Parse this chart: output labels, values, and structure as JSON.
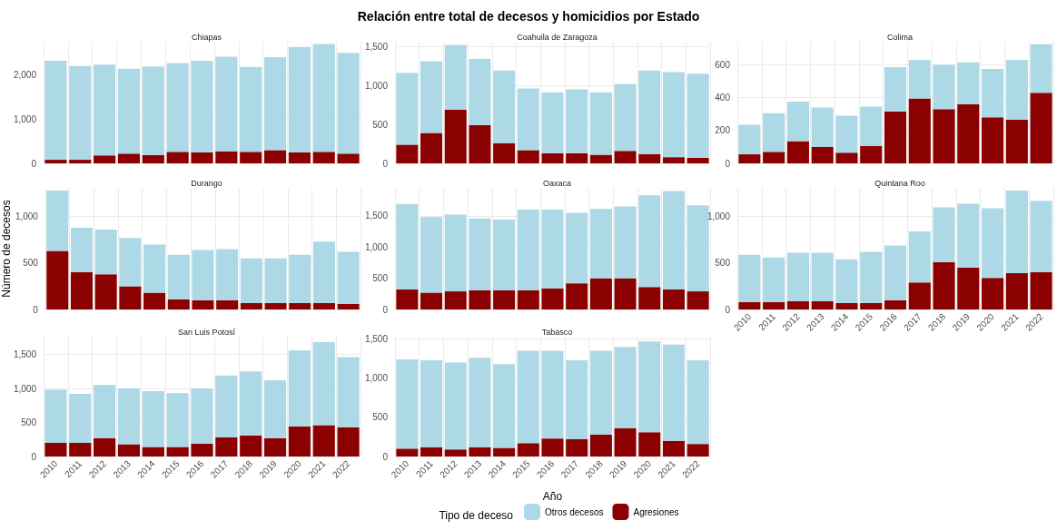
{
  "chart_data": [
    {
      "type": "bar",
      "subtitle": "Chiapas",
      "categories": [
        "2010",
        "2011",
        "2012",
        "2013",
        "2014",
        "2015",
        "2016",
        "2017",
        "2018",
        "2019",
        "2020",
        "2021",
        "2022"
      ],
      "stacked": true,
      "ylim": [
        0,
        2750
      ],
      "yticks": [
        0,
        {
          "value": 1000,
          "label": "1,000"
        },
        {
          "value": 2000,
          "label": "2,000"
        }
      ],
      "grid": true,
      "tick_labels": "y",
      "series": [
        {
          "color": "#8b0000",
          "values": [
            80,
            80,
            180,
            220,
            190,
            260,
            250,
            270,
            260,
            300,
            250,
            260,
            220
          ]
        },
        {
          "color": "#add8e6",
          "values": [
            2240,
            2120,
            2050,
            1920,
            2000,
            2010,
            2070,
            2140,
            1920,
            2100,
            2380,
            2440,
            2280
          ]
        }
      ]
    },
    {
      "type": "bar",
      "title": "Relación entre total de decesos y homicidios por Estado",
      "subtitle": "Coahuila de Zaragoza",
      "categories": [
        "2010",
        "2011",
        "2012",
        "2013",
        "2014",
        "2015",
        "2016",
        "2017",
        "2018",
        "2019",
        "2020",
        "2021",
        "2022"
      ],
      "stacked": true,
      "ylim": [
        0,
        1560
      ],
      "yticks": [
        0,
        500,
        {
          "value": 1000,
          "label": "1,000"
        },
        {
          "value": 1500,
          "label": "1,500"
        }
      ],
      "grid": true,
      "tick_labels": "y",
      "series": [
        {
          "color": "#8b0000",
          "values": [
            240,
            390,
            690,
            490,
            260,
            170,
            130,
            130,
            110,
            160,
            120,
            80,
            70
          ]
        },
        {
          "color": "#add8e6",
          "values": [
            920,
            920,
            830,
            850,
            930,
            790,
            780,
            820,
            800,
            860,
            1070,
            1090,
            1080
          ]
        }
      ]
    },
    {
      "type": "bar",
      "subtitle": "Colima",
      "categories": [
        "2010",
        "2011",
        "2012",
        "2013",
        "2014",
        "2015",
        "2016",
        "2017",
        "2018",
        "2019",
        "2020",
        "2021",
        "2022"
      ],
      "stacked": true,
      "ylim": [
        0,
        740
      ],
      "yticks": [
        0,
        200,
        400,
        600
      ],
      "grid": true,
      "tick_labels": "y",
      "series": [
        {
          "color": "#8b0000",
          "values": [
            55,
            70,
            135,
            100,
            65,
            105,
            315,
            395,
            330,
            360,
            280,
            265,
            430
          ]
        },
        {
          "color": "#add8e6",
          "values": [
            180,
            235,
            240,
            240,
            225,
            240,
            270,
            235,
            270,
            255,
            295,
            365,
            295
          ]
        }
      ]
    },
    {
      "type": "bar",
      "subtitle": "Durango",
      "ylabel": "Número de decesos",
      "categories": [
        "2010",
        "2011",
        "2012",
        "2013",
        "2014",
        "2015",
        "2016",
        "2017",
        "2018",
        "2019",
        "2020",
        "2021",
        "2022"
      ],
      "stacked": true,
      "ylim": [
        0,
        1310
      ],
      "yticks": [
        0,
        500,
        {
          "value": 1000,
          "label": "1,000"
        }
      ],
      "grid": true,
      "tick_labels": "y",
      "series": [
        {
          "color": "#8b0000",
          "values": [
            630,
            400,
            380,
            250,
            180,
            110,
            100,
            100,
            70,
            70,
            70,
            70,
            60
          ]
        },
        {
          "color": "#add8e6",
          "values": [
            650,
            480,
            480,
            520,
            520,
            480,
            540,
            550,
            480,
            480,
            520,
            660,
            560
          ]
        }
      ]
    },
    {
      "type": "bar",
      "subtitle": "Oaxaca",
      "categories": [
        "2010",
        "2011",
        "2012",
        "2013",
        "2014",
        "2015",
        "2016",
        "2017",
        "2018",
        "2019",
        "2020",
        "2021",
        "2022"
      ],
      "stacked": true,
      "ylim": [
        0,
        1950
      ],
      "yticks": [
        0,
        500,
        {
          "value": 1000,
          "label": "1,000"
        },
        {
          "value": 1500,
          "label": "1,500"
        }
      ],
      "grid": true,
      "tick_labels": "y",
      "series": [
        {
          "color": "#8b0000",
          "values": [
            320,
            270,
            290,
            310,
            310,
            310,
            340,
            420,
            500,
            500,
            360,
            320,
            290
          ]
        },
        {
          "color": "#add8e6",
          "values": [
            1370,
            1210,
            1230,
            1150,
            1130,
            1290,
            1260,
            1130,
            1110,
            1150,
            1470,
            1580,
            1380
          ]
        }
      ]
    },
    {
      "type": "bar",
      "subtitle": "Quintana Roo",
      "categories": [
        "2010",
        "2011",
        "2012",
        "2013",
        "2014",
        "2015",
        "2016",
        "2017",
        "2018",
        "2019",
        "2020",
        "2021",
        "2022"
      ],
      "stacked": true,
      "ylim": [
        0,
        1310
      ],
      "yticks": [
        0,
        500,
        {
          "value": 1000,
          "label": "1,000"
        }
      ],
      "grid": true,
      "series": [
        {
          "color": "#8b0000",
          "values": [
            80,
            80,
            90,
            90,
            70,
            70,
            100,
            290,
            510,
            450,
            340,
            390,
            400
          ]
        },
        {
          "color": "#add8e6",
          "values": [
            510,
            480,
            520,
            520,
            470,
            550,
            590,
            550,
            590,
            690,
            750,
            890,
            770
          ]
        }
      ]
    },
    {
      "type": "bar",
      "subtitle": "San Luis Potosí",
      "categories": [
        "2010",
        "2011",
        "2012",
        "2013",
        "2014",
        "2015",
        "2016",
        "2017",
        "2018",
        "2019",
        "2020",
        "2021",
        "2022"
      ],
      "stacked": true,
      "ylim": [
        0,
        1760
      ],
      "yticks": [
        0,
        500,
        {
          "value": 1000,
          "label": "1,000"
        },
        {
          "value": 1500,
          "label": "1,500"
        }
      ],
      "grid": true,
      "series": [
        {
          "color": "#8b0000",
          "values": [
            200,
            200,
            270,
            180,
            140,
            140,
            190,
            280,
            310,
            270,
            440,
            460,
            430
          ]
        },
        {
          "color": "#add8e6",
          "values": [
            780,
            720,
            780,
            820,
            820,
            790,
            810,
            910,
            940,
            850,
            1120,
            1220,
            1030
          ]
        }
      ]
    },
    {
      "type": "bar",
      "subtitle": "Tabasco",
      "xlabel": "Año",
      "legend": "bottom",
      "legend_title": "Tipo de deceso",
      "categories": [
        "2010",
        "2011",
        "2012",
        "2013",
        "2014",
        "2015",
        "2016",
        "2017",
        "2018",
        "2019",
        "2020",
        "2021",
        "2022"
      ],
      "stacked": true,
      "ylim": [
        0,
        1530
      ],
      "yticks": [
        0,
        500,
        {
          "value": 1000,
          "label": "1,000"
        },
        {
          "value": 1500,
          "label": "1,500"
        }
      ],
      "grid": true,
      "series": [
        {
          "name": "Agresiones",
          "color": "#8b0000",
          "values": [
            100,
            120,
            90,
            120,
            110,
            170,
            230,
            220,
            280,
            360,
            310,
            200,
            160
          ]
        },
        {
          "name": "Otros decesos",
          "color": "#add8e6",
          "values": [
            1140,
            1110,
            1110,
            1140,
            1070,
            1180,
            1120,
            1010,
            1070,
            1040,
            1160,
            1230,
            1070
          ]
        }
      ]
    }
  ]
}
